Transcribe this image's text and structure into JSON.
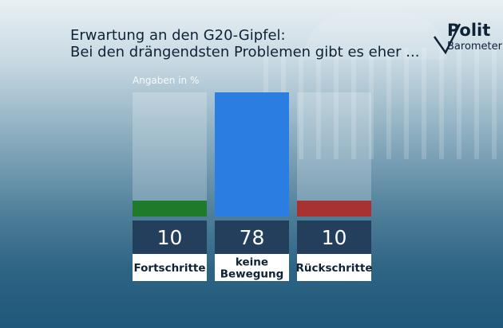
{
  "title": {
    "line1": "Erwartung an den G20-Gipfel:",
    "line2": "Bei den drängendsten Problemen gibt es eher ..."
  },
  "logo": {
    "line1": "Polit",
    "line2": "Barometer"
  },
  "unit_label": "Angaben in %",
  "colors": {
    "fortschritte": "#1f7a2a",
    "keine_bewegung": "#2a7de1",
    "rueckschritte": "#a83232",
    "value_box": "#233f5c"
  },
  "chart_data": {
    "type": "bar",
    "categories": [
      "Fortschritte",
      "keine Bewegung",
      "Rückschritte"
    ],
    "category_lines": [
      [
        "Fortschritte"
      ],
      [
        "keine",
        "Bewegung"
      ],
      [
        "Rückschritte"
      ]
    ],
    "values": [
      10,
      78,
      10
    ],
    "value_labels": [
      "10",
      "78",
      "10"
    ],
    "ylim": [
      0,
      78
    ],
    "grid": false,
    "xlabel": "",
    "ylabel": ""
  }
}
